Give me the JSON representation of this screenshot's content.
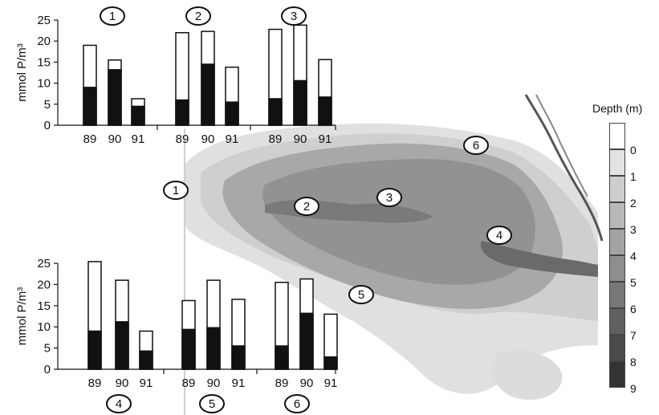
{
  "chart_data": [
    {
      "type": "bar",
      "stacked": true,
      "panel": "top",
      "ylabel": "mmol P/m³",
      "ylim": [
        0,
        25
      ],
      "yticks": [
        0,
        5,
        10,
        15,
        20,
        25
      ],
      "groups": [
        {
          "station": "1",
          "categories": [
            "89",
            "90",
            "91"
          ],
          "total": [
            19,
            15.5,
            6.3
          ],
          "dark": [
            9,
            13.2,
            4.5
          ]
        },
        {
          "station": "2",
          "categories": [
            "89",
            "90",
            "91"
          ],
          "total": [
            22,
            22.3,
            13.8
          ],
          "dark": [
            6,
            14.5,
            5.5
          ]
        },
        {
          "station": "3",
          "categories": [
            "89",
            "90",
            "91"
          ],
          "total": [
            22.8,
            23.8,
            15.6
          ],
          "dark": [
            6.3,
            10.6,
            6.7
          ]
        }
      ]
    },
    {
      "type": "bar",
      "stacked": true,
      "panel": "bottom",
      "ylabel": "mmol P/m³",
      "ylim": [
        0,
        25
      ],
      "yticks": [
        0,
        5,
        10,
        15,
        20,
        25
      ],
      "groups": [
        {
          "station": "4",
          "categories": [
            "89",
            "90",
            "91"
          ],
          "total": [
            25.4,
            21,
            9
          ],
          "dark": [
            9,
            11.2,
            4.3
          ]
        },
        {
          "station": "5",
          "categories": [
            "89",
            "90",
            "91"
          ],
          "total": [
            16.2,
            21,
            16.5
          ],
          "dark": [
            9.4,
            9.8,
            5.5
          ]
        },
        {
          "station": "6",
          "categories": [
            "89",
            "90",
            "91"
          ],
          "total": [
            20.5,
            21.3,
            13
          ],
          "dark": [
            5.5,
            13.2,
            2.9
          ]
        }
      ]
    }
  ],
  "map": {
    "station_labels": [
      "1",
      "2",
      "3",
      "4",
      "5",
      "6"
    ],
    "legend": {
      "title": "Depth (m)",
      "levels": [
        "0",
        "1",
        "2",
        "3",
        "4",
        "5",
        "6",
        "7",
        "8",
        "9"
      ],
      "colors": [
        "#ffffff",
        "#e2e2e2",
        "#cdcdcd",
        "#b8b8b8",
        "#a3a3a3",
        "#8e8e8e",
        "#777777",
        "#606060",
        "#4a4a4a",
        "#333333"
      ]
    }
  }
}
